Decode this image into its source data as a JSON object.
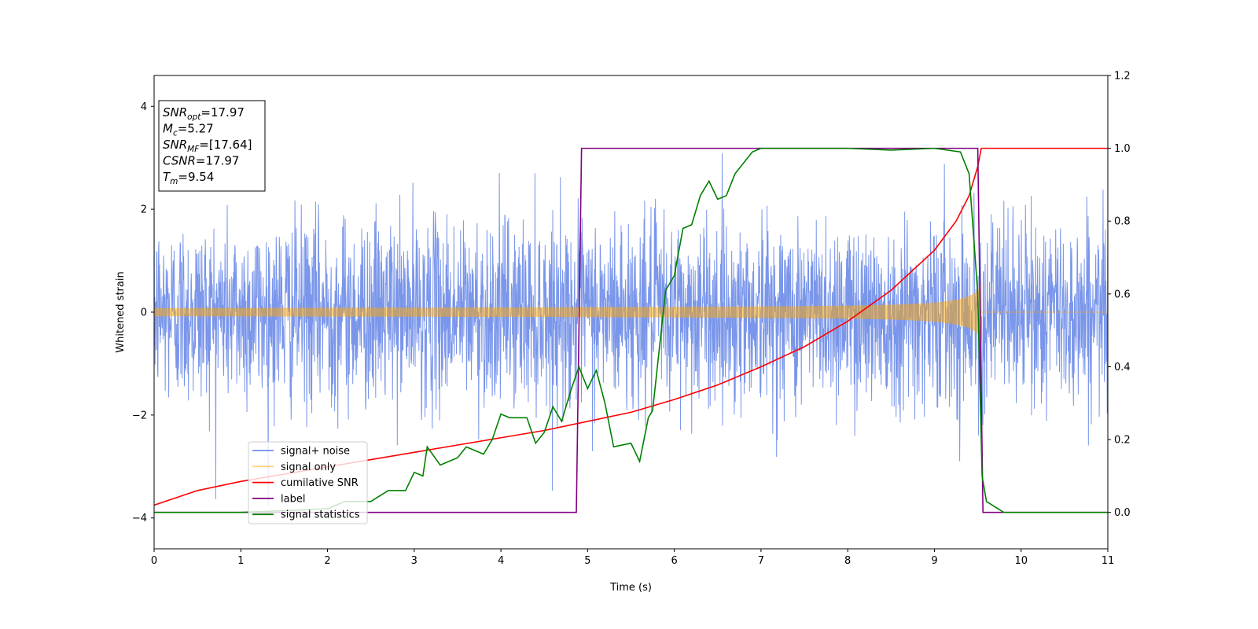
{
  "chart_data": {
    "type": "line",
    "xlabel": "Time (s)",
    "ylabel": "Whitened strain",
    "xlim": [
      0,
      11
    ],
    "ylim_left": [
      -4.6,
      4.6
    ],
    "ylim_right": [
      -0.1,
      1.2
    ],
    "x_ticks": [
      0,
      1,
      2,
      3,
      4,
      5,
      6,
      7,
      8,
      9,
      10,
      11
    ],
    "y_ticks_left": [
      -4,
      -2,
      0,
      2,
      4
    ],
    "y_ticks_right": [
      "0.0",
      "0.2",
      "0.4",
      "0.6",
      "0.8",
      "1.0",
      "1.2"
    ],
    "grid": false,
    "legend_position": "lower-left",
    "annotation": {
      "lines": [
        {
          "base": "SNR",
          "sub": "opt",
          "value": "=17.97"
        },
        {
          "base": "M",
          "sub": "c",
          "value": "=5.27"
        },
        {
          "base": "SNR",
          "sub": "MF",
          "value": "=[17.64]"
        },
        {
          "base": "CSNR",
          "sub": "",
          "value": "=17.97"
        },
        {
          "base": "T",
          "sub": "m",
          "value": "=9.54"
        }
      ]
    },
    "series": [
      {
        "name": "signal+ noise",
        "color": "#4169e1",
        "axis": "left",
        "kind": "noise",
        "std": 0.9,
        "x_range": [
          0,
          11
        ]
      },
      {
        "name": "signal only",
        "color": "#ffa500",
        "axis": "left",
        "kind": "chirp",
        "merger_time": 9.54,
        "start_amplitude": 0.08,
        "peak_amplitude": 1.0
      },
      {
        "name": "cumilative SNR",
        "color": "#ff0000",
        "axis": "right",
        "points": [
          [
            0,
            0.02
          ],
          [
            0.5,
            0.06
          ],
          [
            1,
            0.085
          ],
          [
            1.5,
            0.105
          ],
          [
            2,
            0.125
          ],
          [
            2.5,
            0.145
          ],
          [
            3,
            0.165
          ],
          [
            3.5,
            0.185
          ],
          [
            4,
            0.205
          ],
          [
            4.5,
            0.225
          ],
          [
            5,
            0.25
          ],
          [
            5.5,
            0.275
          ],
          [
            6,
            0.31
          ],
          [
            6.5,
            0.35
          ],
          [
            7,
            0.4
          ],
          [
            7.5,
            0.455
          ],
          [
            8,
            0.525
          ],
          [
            8.5,
            0.61
          ],
          [
            9,
            0.72
          ],
          [
            9.25,
            0.8
          ],
          [
            9.4,
            0.87
          ],
          [
            9.5,
            0.95
          ],
          [
            9.54,
            1.0
          ],
          [
            11,
            1.0
          ]
        ]
      },
      {
        "name": "label",
        "color": "#800080",
        "axis": "right",
        "points": [
          [
            0,
            0
          ],
          [
            4.87,
            0
          ],
          [
            4.93,
            1
          ],
          [
            9.5,
            1
          ],
          [
            9.56,
            0
          ],
          [
            11,
            0
          ]
        ]
      },
      {
        "name": "signal statistics",
        "color": "#008000",
        "axis": "right",
        "points": [
          [
            0,
            0
          ],
          [
            1,
            0.0
          ],
          [
            1.5,
            0.005
          ],
          [
            2,
            0.01
          ],
          [
            2.2,
            0.03
          ],
          [
            2.5,
            0.03
          ],
          [
            2.7,
            0.06
          ],
          [
            2.9,
            0.06
          ],
          [
            3.0,
            0.11
          ],
          [
            3.1,
            0.1
          ],
          [
            3.15,
            0.18
          ],
          [
            3.3,
            0.13
          ],
          [
            3.5,
            0.15
          ],
          [
            3.6,
            0.18
          ],
          [
            3.8,
            0.16
          ],
          [
            3.9,
            0.2
          ],
          [
            4.0,
            0.27
          ],
          [
            4.1,
            0.26
          ],
          [
            4.3,
            0.26
          ],
          [
            4.4,
            0.19
          ],
          [
            4.5,
            0.22
          ],
          [
            4.6,
            0.29
          ],
          [
            4.7,
            0.25
          ],
          [
            4.8,
            0.33
          ],
          [
            4.9,
            0.4
          ],
          [
            5.0,
            0.34
          ],
          [
            5.1,
            0.39
          ],
          [
            5.2,
            0.3
          ],
          [
            5.3,
            0.18
          ],
          [
            5.5,
            0.19
          ],
          [
            5.6,
            0.14
          ],
          [
            5.7,
            0.26
          ],
          [
            5.75,
            0.28
          ],
          [
            5.85,
            0.5
          ],
          [
            5.9,
            0.61
          ],
          [
            6.0,
            0.65
          ],
          [
            6.1,
            0.78
          ],
          [
            6.2,
            0.79
          ],
          [
            6.3,
            0.87
          ],
          [
            6.4,
            0.91
          ],
          [
            6.5,
            0.86
          ],
          [
            6.6,
            0.87
          ],
          [
            6.7,
            0.93
          ],
          [
            6.8,
            0.96
          ],
          [
            6.9,
            0.99
          ],
          [
            7.0,
            1.0
          ],
          [
            8.0,
            1.0
          ],
          [
            8.5,
            0.995
          ],
          [
            9.0,
            1.0
          ],
          [
            9.3,
            0.99
          ],
          [
            9.4,
            0.93
          ],
          [
            9.5,
            0.6
          ],
          [
            9.55,
            0.1
          ],
          [
            9.6,
            0.03
          ],
          [
            9.8,
            0.0
          ],
          [
            11,
            0
          ]
        ]
      }
    ]
  }
}
